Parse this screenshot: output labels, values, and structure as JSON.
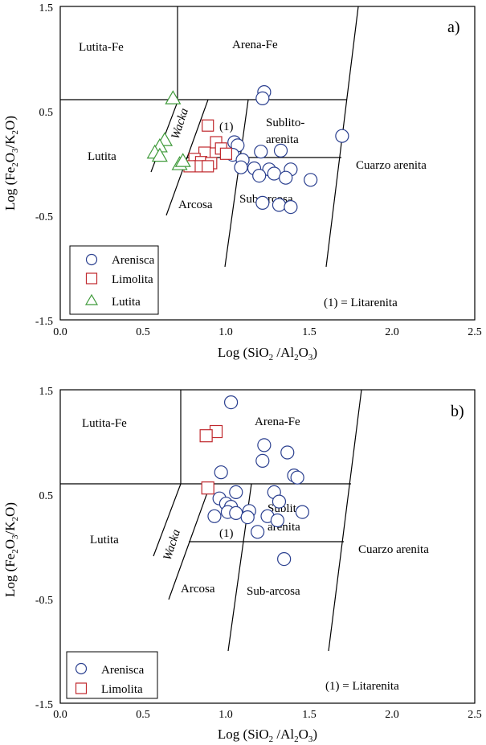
{
  "chart_data": [
    {
      "type": "scatter",
      "panel_label": "a)",
      "xlabel": "Log (SiO2 /Al2O3)",
      "ylabel": "Log (Fe2O3/K2O)",
      "xlim": [
        0,
        2.5
      ],
      "ylim": [
        -1.5,
        1.5
      ],
      "x_ticks": [
        "0.0",
        "0.5",
        "1.0",
        "1.5",
        "2.0",
        "2.5"
      ],
      "y_ticks": [
        "1.5",
        "0.5",
        "-0.5",
        "-1.5"
      ],
      "field_labels": [
        "Lutita-Fe",
        "Arena-Fe",
        "Lutita",
        "Wacka",
        "Sublito-",
        "arenita",
        "Arcosa",
        "Sub-arcosa",
        "Cuarzo arenita",
        "(1)"
      ],
      "note": "(1) = Litarenita",
      "legend": [
        "Arenisca",
        "Limolita",
        "Lutita"
      ],
      "series": [
        {
          "name": "Arenisca",
          "marker": "circle",
          "color": "#2a3f8f",
          "points": [
            [
              1.23,
              0.68
            ],
            [
              1.22,
              0.62
            ],
            [
              1.7,
              0.26
            ],
            [
              1.05,
              0.2
            ],
            [
              1.07,
              0.17
            ],
            [
              1.21,
              0.11
            ],
            [
              1.33,
              0.12
            ],
            [
              1.04,
              0.08
            ],
            [
              1.1,
              0.03
            ],
            [
              1.09,
              -0.04
            ],
            [
              1.17,
              -0.05
            ],
            [
              1.26,
              -0.06
            ],
            [
              1.39,
              -0.06
            ],
            [
              1.2,
              -0.12
            ],
            [
              1.29,
              -0.1
            ],
            [
              1.36,
              -0.14
            ],
            [
              1.51,
              -0.16
            ],
            [
              1.22,
              -0.38
            ],
            [
              1.32,
              -0.4
            ],
            [
              1.39,
              -0.42
            ]
          ]
        },
        {
          "name": "Limolita",
          "marker": "square",
          "color": "#c0282d",
          "points": [
            [
              0.89,
              0.36
            ],
            [
              0.94,
              0.2
            ],
            [
              0.87,
              0.1
            ],
            [
              0.97,
              0.14
            ],
            [
              1.0,
              0.09
            ],
            [
              0.81,
              0.04
            ],
            [
              0.85,
              0.01
            ],
            [
              0.91,
              0.0
            ],
            [
              0.84,
              -0.03
            ],
            [
              0.89,
              -0.03
            ],
            [
              0.78,
              -0.03
            ]
          ]
        },
        {
          "name": "Lutita",
          "marker": "triangle",
          "color": "#3f9a3a",
          "points": [
            [
              0.68,
              0.62
            ],
            [
              0.63,
              0.22
            ],
            [
              0.6,
              0.16
            ],
            [
              0.57,
              0.1
            ],
            [
              0.6,
              0.07
            ],
            [
              0.72,
              -0.01
            ],
            [
              0.74,
              0.02
            ]
          ]
        }
      ]
    },
    {
      "type": "scatter",
      "panel_label": "b)",
      "xlabel": "Log (SiO2 /Al2O3)",
      "ylabel": "Log (Fe2O3/K2O)",
      "xlim": [
        0,
        2.5
      ],
      "ylim": [
        -1.5,
        1.5
      ],
      "x_ticks": [
        "0.0",
        "0.5",
        "1.0",
        "1.5",
        "2.0",
        "2.5"
      ],
      "y_ticks": [
        "1.5",
        "0.5",
        "-0.5",
        "-1.5"
      ],
      "field_labels": [
        "Lutita-Fe",
        "Arena-Fe",
        "Lutita",
        "Wacka",
        "Sublito-",
        "arenita",
        "Arcosa",
        "Sub-arcosa",
        "Cuarzo arenita",
        "(1)"
      ],
      "note": "(1) = Litarenita",
      "legend": [
        "Arenisca",
        "Limolita"
      ],
      "series": [
        {
          "name": "Arenisca",
          "marker": "circle",
          "color": "#2a3f8f",
          "points": [
            [
              1.03,
              1.38
            ],
            [
              1.23,
              0.97
            ],
            [
              1.22,
              0.82
            ],
            [
              1.37,
              0.9
            ],
            [
              1.41,
              0.68
            ],
            [
              1.43,
              0.66
            ],
            [
              0.97,
              0.71
            ],
            [
              1.06,
              0.52
            ],
            [
              1.29,
              0.52
            ],
            [
              0.96,
              0.46
            ],
            [
              1.0,
              0.41
            ],
            [
              1.03,
              0.38
            ],
            [
              1.32,
              0.43
            ],
            [
              1.01,
              0.33
            ],
            [
              1.06,
              0.32
            ],
            [
              1.14,
              0.34
            ],
            [
              1.13,
              0.28
            ],
            [
              1.25,
              0.29
            ],
            [
              1.31,
              0.25
            ],
            [
              1.46,
              0.33
            ],
            [
              0.93,
              0.29
            ],
            [
              1.19,
              0.14
            ],
            [
              1.35,
              -0.12
            ]
          ]
        },
        {
          "name": "Limolita",
          "marker": "square",
          "color": "#c0282d",
          "points": [
            [
              0.94,
              1.1
            ],
            [
              0.88,
              1.06
            ],
            [
              0.89,
              0.56
            ]
          ]
        }
      ]
    }
  ]
}
